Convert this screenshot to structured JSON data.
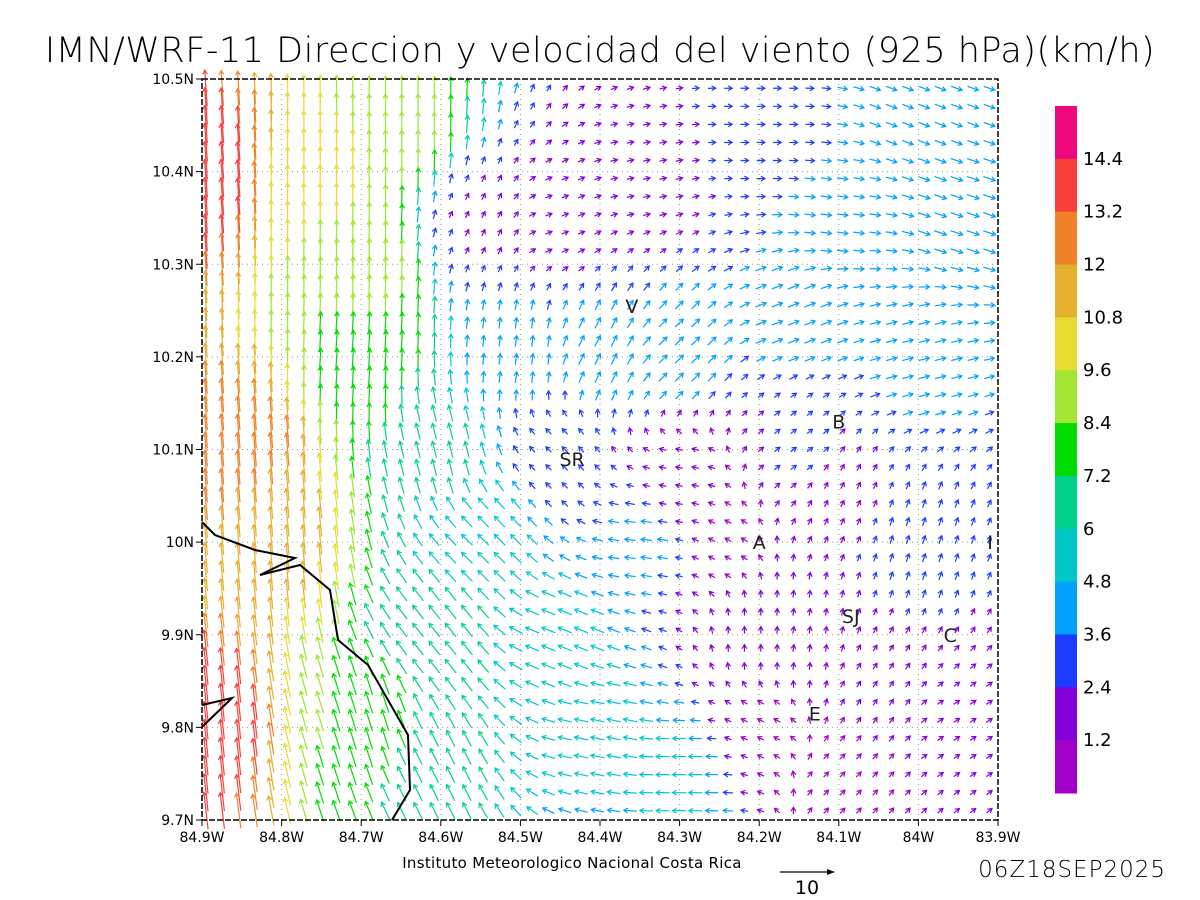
{
  "title": "IMN/WRF-11 Direccion y velocidad del viento (925 hPa)(km/h)",
  "credit": "Instituto Meteorologico Nacional Costa Rica",
  "timestamp": "06Z18SEP2025",
  "reference_vector": {
    "label": "10",
    "value": 10
  },
  "x_ticks": [
    "84.9W",
    "84.8W",
    "84.7W",
    "84.6W",
    "84.5W",
    "84.4W",
    "84.3W",
    "84.2W",
    "84.1W",
    "84W",
    "83.9W"
  ],
  "y_ticks": [
    "10.5N",
    "10.4N",
    "10.3N",
    "10.2N",
    "10.1N",
    "10N",
    "9.9N",
    "9.8N",
    "9.7N"
  ],
  "extent": {
    "lon_west": -84.9,
    "lon_east": -83.9,
    "lat_south": 9.7,
    "lat_north": 10.5
  },
  "colorbar": {
    "labels": [
      "14.4",
      "13.2",
      "12",
      "10.8",
      "9.6",
      "8.4",
      "7.2",
      "6",
      "4.8",
      "3.6",
      "2.4",
      "1.2"
    ],
    "colors": [
      "#f0087f",
      "#fa403c",
      "#f0822a",
      "#e6af2e",
      "#e6dc32",
      "#a0e632",
      "#00dc00",
      "#00d28c",
      "#00c8c8",
      "#00a0ff",
      "#1e3cff",
      "#8200dc",
      "#a000c8"
    ]
  },
  "places": [
    {
      "label": "V",
      "lon": -84.36,
      "lat": 10.255
    },
    {
      "label": "B",
      "lon": -84.1,
      "lat": 10.13
    },
    {
      "label": "SR",
      "lon": -84.435,
      "lat": 10.09
    },
    {
      "label": "A",
      "lon": -84.2,
      "lat": 10.0
    },
    {
      "label": "I",
      "lon": -83.91,
      "lat": 10.0
    },
    {
      "label": "SJ",
      "lon": -84.085,
      "lat": 9.92
    },
    {
      "label": "C",
      "lon": -83.96,
      "lat": 9.9
    },
    {
      "label": "E",
      "lon": -84.13,
      "lat": 9.815
    }
  ]
}
